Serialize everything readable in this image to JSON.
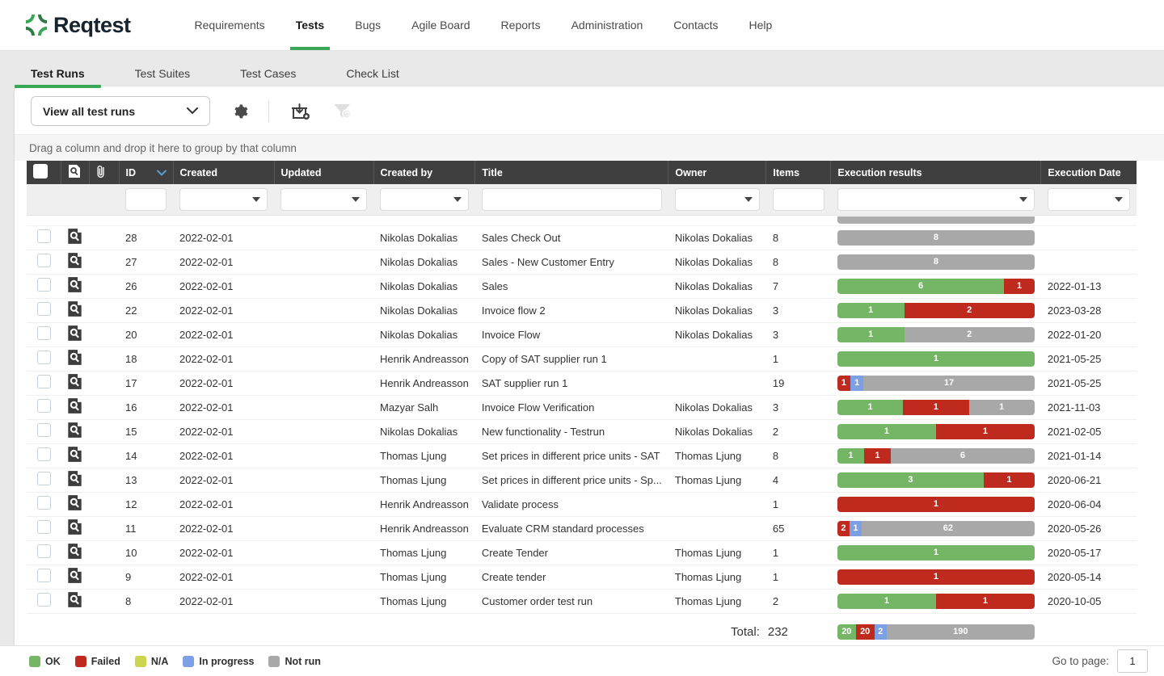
{
  "brand": {
    "name": "Reqtest"
  },
  "nav": {
    "items": [
      {
        "label": "Requirements",
        "active": false
      },
      {
        "label": "Tests",
        "active": true
      },
      {
        "label": "Bugs",
        "active": false
      },
      {
        "label": "Agile Board",
        "active": false
      },
      {
        "label": "Reports",
        "active": false
      },
      {
        "label": "Administration",
        "active": false
      },
      {
        "label": "Contacts",
        "active": false
      },
      {
        "label": "Help",
        "active": false
      }
    ]
  },
  "tabs": {
    "items": [
      {
        "label": "Test Runs",
        "active": true
      },
      {
        "label": "Test Suites",
        "active": false
      },
      {
        "label": "Test Cases",
        "active": false
      },
      {
        "label": "Check List",
        "active": false
      }
    ]
  },
  "toolbar": {
    "view_select_value": "View all test runs",
    "icons": [
      "settings-gear",
      "import-test-run",
      "filter-disabled"
    ]
  },
  "group_bar": {
    "text": "Drag a column and drop it here to group by that column"
  },
  "table": {
    "columns": {
      "id": "ID",
      "created": "Created",
      "updated": "Updated",
      "created_by": "Created by",
      "title": "Title",
      "owner": "Owner",
      "items": "Items",
      "execution_results": "Execution results",
      "execution_date": "Execution Date"
    },
    "sort": {
      "column": "ID",
      "direction": "desc"
    },
    "rows": [
      {
        "id": "28",
        "created": "2022-02-01",
        "updated": "",
        "created_by": "Nikolas Dokalias",
        "title": "Sales Check Out",
        "owner": "Nikolas Dokalias",
        "items": "8",
        "segments": [
          {
            "status": "notrun",
            "count": 8
          }
        ],
        "execution_date": ""
      },
      {
        "id": "27",
        "created": "2022-02-01",
        "updated": "",
        "created_by": "Nikolas Dokalias",
        "title": "Sales - New Customer Entry",
        "owner": "Nikolas Dokalias",
        "items": "8",
        "segments": [
          {
            "status": "notrun",
            "count": 8
          }
        ],
        "execution_date": ""
      },
      {
        "id": "26",
        "created": "2022-02-01",
        "updated": "",
        "created_by": "Nikolas Dokalias",
        "title": "Sales",
        "owner": "Nikolas Dokalias",
        "items": "7",
        "segments": [
          {
            "status": "ok",
            "count": 6
          },
          {
            "status": "failed",
            "count": 1
          }
        ],
        "execution_date": "2022-01-13"
      },
      {
        "id": "22",
        "created": "2022-02-01",
        "updated": "",
        "created_by": "Nikolas Dokalias",
        "title": "Invoice flow 2",
        "owner": "Nikolas Dokalias",
        "items": "3",
        "segments": [
          {
            "status": "ok",
            "count": 1
          },
          {
            "status": "failed",
            "count": 2
          }
        ],
        "execution_date": "2023-03-28"
      },
      {
        "id": "20",
        "created": "2022-02-01",
        "updated": "",
        "created_by": "Nikolas Dokalias",
        "title": "Invoice Flow",
        "owner": "Nikolas Dokalias",
        "items": "3",
        "segments": [
          {
            "status": "ok",
            "count": 1
          },
          {
            "status": "notrun",
            "count": 2
          }
        ],
        "execution_date": "2022-01-20"
      },
      {
        "id": "18",
        "created": "2022-02-01",
        "updated": "",
        "created_by": "Henrik Andreasson",
        "title": "Copy of SAT supplier run 1",
        "owner": "",
        "items": "1",
        "segments": [
          {
            "status": "ok",
            "count": 1
          }
        ],
        "execution_date": "2021-05-25"
      },
      {
        "id": "17",
        "created": "2022-02-01",
        "updated": "",
        "created_by": "Henrik Andreasson",
        "title": "SAT supplier run 1",
        "owner": "",
        "items": "19",
        "segments": [
          {
            "status": "failed",
            "count": 1
          },
          {
            "status": "inprogress",
            "count": 1
          },
          {
            "status": "notrun",
            "count": 17
          }
        ],
        "execution_date": "2021-05-25"
      },
      {
        "id": "16",
        "created": "2022-02-01",
        "updated": "",
        "created_by": "Mazyar Salh",
        "title": "Invoice Flow Verification",
        "owner": "Nikolas Dokalias",
        "items": "3",
        "segments": [
          {
            "status": "ok",
            "count": 1
          },
          {
            "status": "failed",
            "count": 1
          },
          {
            "status": "notrun",
            "count": 1
          }
        ],
        "execution_date": "2021-11-03"
      },
      {
        "id": "15",
        "created": "2022-02-01",
        "updated": "",
        "created_by": "Nikolas Dokalias",
        "title": "New functionality - Testrun",
        "owner": "Nikolas Dokalias",
        "items": "2",
        "segments": [
          {
            "status": "ok",
            "count": 1
          },
          {
            "status": "failed",
            "count": 1
          }
        ],
        "execution_date": "2021-02-05"
      },
      {
        "id": "14",
        "created": "2022-02-01",
        "updated": "",
        "created_by": "Thomas Ljung",
        "title": "Set prices in different price units - SAT",
        "owner": "Thomas Ljung",
        "items": "8",
        "segments": [
          {
            "status": "ok",
            "count": 1
          },
          {
            "status": "failed",
            "count": 1
          },
          {
            "status": "notrun",
            "count": 6
          }
        ],
        "execution_date": "2021-01-14"
      },
      {
        "id": "13",
        "created": "2022-02-01",
        "updated": "",
        "created_by": "Thomas Ljung",
        "title": "Set prices in different price units - Sp...",
        "owner": "Thomas Ljung",
        "items": "4",
        "segments": [
          {
            "status": "ok",
            "count": 3
          },
          {
            "status": "failed",
            "count": 1
          }
        ],
        "execution_date": "2020-06-21"
      },
      {
        "id": "12",
        "created": "2022-02-01",
        "updated": "",
        "created_by": "Henrik Andreasson",
        "title": "Validate process",
        "owner": "",
        "items": "1",
        "segments": [
          {
            "status": "failed",
            "count": 1
          }
        ],
        "execution_date": "2020-06-04"
      },
      {
        "id": "11",
        "created": "2022-02-01",
        "updated": "",
        "created_by": "Henrik Andreasson",
        "title": "Evaluate CRM standard processes",
        "owner": "",
        "items": "65",
        "segments": [
          {
            "status": "failed",
            "count": 2
          },
          {
            "status": "inprogress",
            "count": 1
          },
          {
            "status": "notrun",
            "count": 62
          }
        ],
        "execution_date": "2020-05-26"
      },
      {
        "id": "10",
        "created": "2022-02-01",
        "updated": "",
        "created_by": "Thomas Ljung",
        "title": "Create Tender",
        "owner": "Thomas Ljung",
        "items": "1",
        "segments": [
          {
            "status": "ok",
            "count": 1
          }
        ],
        "execution_date": "2020-05-17"
      },
      {
        "id": "9",
        "created": "2022-02-01",
        "updated": "",
        "created_by": "Thomas Ljung",
        "title": "Create tender",
        "owner": "Thomas Ljung",
        "items": "1",
        "segments": [
          {
            "status": "failed",
            "count": 1
          }
        ],
        "execution_date": "2020-05-14"
      },
      {
        "id": "8",
        "created": "2022-02-01",
        "updated": "",
        "created_by": "Thomas Ljung",
        "title": "Customer order test run",
        "owner": "Thomas Ljung",
        "items": "2",
        "segments": [
          {
            "status": "ok",
            "count": 1
          },
          {
            "status": "failed",
            "count": 1
          }
        ],
        "execution_date": "2020-10-05"
      }
    ],
    "total": {
      "label": "Total:",
      "value": "232",
      "segments": [
        {
          "status": "ok",
          "count": 20
        },
        {
          "status": "failed",
          "count": 20
        },
        {
          "status": "inprogress",
          "count": 2
        },
        {
          "status": "notrun",
          "count": 190
        }
      ]
    }
  },
  "legend": {
    "items": [
      {
        "label": "OK",
        "status": "ok"
      },
      {
        "label": "Failed",
        "status": "failed"
      },
      {
        "label": "N/A",
        "status": "na"
      },
      {
        "label": "In progress",
        "status": "inprogress"
      },
      {
        "label": "Not run",
        "status": "notrun"
      }
    ]
  },
  "pagination": {
    "label": "Go to page:",
    "value": "1"
  },
  "colors": {
    "ok": "#74b566",
    "failed": "#bf2a1e",
    "na": "#cbd54d",
    "inprogress": "#7d9fe3",
    "notrun": "#a8a8a8",
    "brand_green": "#3aa757",
    "header_bg": "#3f3f3f"
  }
}
